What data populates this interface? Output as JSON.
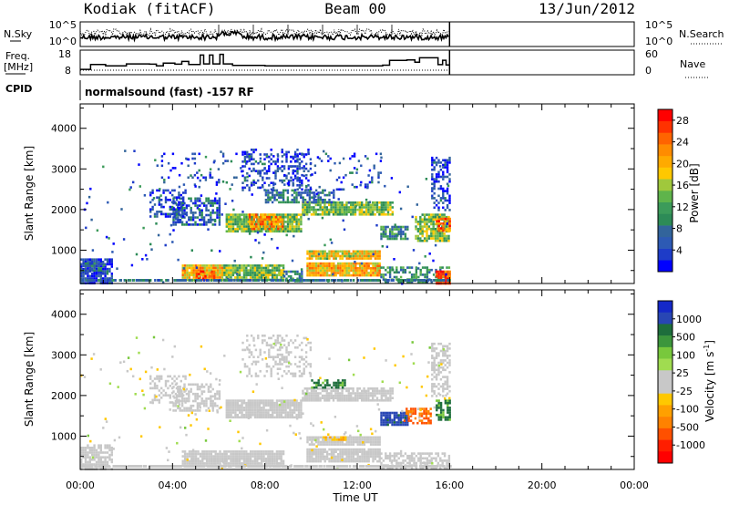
{
  "header": {
    "station": "Kodiak (fitACF)",
    "beam": "Beam 00",
    "date": "13/Jun/2012"
  },
  "chart_data": [
    {
      "type": "line",
      "name": "noise-panel",
      "left_label": "N.Sky",
      "right_label": "N.Search",
      "left_ticks": [
        "10^5",
        "10^0"
      ],
      "right_ticks": [
        "10^5",
        "10^0"
      ]
    },
    {
      "type": "line",
      "name": "frequency-panel",
      "left_label_1": "Freq.",
      "left_label_2": "[MHz]",
      "right_label": "Nave",
      "left_ticks": [
        18,
        8
      ],
      "right_ticks": [
        60,
        0
      ],
      "ylim_left": [
        8,
        18
      ],
      "ylim_right": [
        0,
        60
      ],
      "freq_steps_hours": [
        [
          0.0,
          10.2
        ],
        [
          0.45,
          12.2
        ],
        [
          1.1,
          11.6
        ],
        [
          2.0,
          12.4
        ],
        [
          3.0,
          12.3
        ],
        [
          3.3,
          11.6
        ],
        [
          3.6,
          12.7
        ],
        [
          4.1,
          12.3
        ],
        [
          4.4,
          13.4
        ],
        [
          4.7,
          12.2
        ],
        [
          5.2,
          16.0
        ],
        [
          5.35,
          12.4
        ],
        [
          5.6,
          16.0
        ],
        [
          5.75,
          12.4
        ],
        [
          6.05,
          16.3
        ],
        [
          6.2,
          12.4
        ],
        [
          6.6,
          11.8
        ],
        [
          8.0,
          11.6
        ],
        [
          9.0,
          11.6
        ],
        [
          11.5,
          11.6
        ],
        [
          12.5,
          11.6
        ],
        [
          13.1,
          11.9
        ],
        [
          13.4,
          13.8
        ],
        [
          14.15,
          14.0
        ],
        [
          14.5,
          13.1
        ],
        [
          14.7,
          14.9
        ],
        [
          15.5,
          12.1
        ],
        [
          15.7,
          13.9
        ],
        [
          15.85,
          12.0
        ],
        [
          16.0,
          12.0
        ]
      ]
    },
    {
      "type": "text",
      "name": "cpid-row",
      "label": "CPID",
      "text": "normalsound (fast) -157 RF"
    },
    {
      "type": "heatmap",
      "name": "power-panel",
      "ylabel": "Slant Range [km]",
      "xlabel": "",
      "xlim_hours": [
        0,
        24
      ],
      "ylim_km": [
        180,
        4600
      ],
      "yticks": [
        1000,
        2000,
        3000,
        4000
      ],
      "colorbar_label": "Power [dB]",
      "colorbar_ticks": [
        4,
        8,
        12,
        16,
        20,
        24,
        28
      ],
      "colorbar_range": [
        0,
        30
      ],
      "colors": [
        "#0000ff",
        "#1e3cc8",
        "#2d5ab4",
        "#32649b",
        "#2d8b57",
        "#3c9b5a",
        "#5fb44b",
        "#a0c83c",
        "#ffc800",
        "#ffaa00",
        "#ff8c00",
        "#ff6400",
        "#ff3200",
        "#ff0000"
      ],
      "echo_regions": [
        {
          "t0": 0.0,
          "t1": 1.4,
          "r0": 200,
          "r1": 800,
          "p": 4,
          "d": 0.85
        },
        {
          "t0": 0.1,
          "t1": 0.9,
          "r0": 500,
          "r1": 700,
          "p": 8,
          "d": 0.7
        },
        {
          "t0": 4.4,
          "t1": 6.2,
          "r0": 250,
          "r1": 650,
          "p": 20,
          "d": 0.95
        },
        {
          "t0": 5.0,
          "t1": 5.8,
          "r0": 300,
          "r1": 500,
          "p": 26,
          "d": 0.7
        },
        {
          "t0": 6.2,
          "t1": 8.8,
          "r0": 250,
          "r1": 650,
          "p": 14,
          "d": 0.9
        },
        {
          "t0": 8.8,
          "t1": 9.6,
          "r0": 250,
          "r1": 500,
          "p": 10,
          "d": 0.6
        },
        {
          "t0": 9.8,
          "t1": 13.0,
          "r0": 350,
          "r1": 700,
          "p": 20,
          "d": 0.95
        },
        {
          "t0": 9.8,
          "t1": 13.0,
          "r0": 800,
          "r1": 1000,
          "p": 18,
          "d": 0.95
        },
        {
          "t0": 13.0,
          "t1": 16.0,
          "r0": 200,
          "r1": 600,
          "p": 10,
          "d": 0.55
        },
        {
          "t0": 15.4,
          "t1": 16.0,
          "r0": 200,
          "r1": 500,
          "p": 26,
          "d": 0.8
        },
        {
          "t0": 6.3,
          "t1": 9.6,
          "r0": 1450,
          "r1": 1900,
          "p": 14,
          "d": 0.95
        },
        {
          "t0": 7.3,
          "t1": 8.8,
          "r0": 1500,
          "r1": 1900,
          "p": 22,
          "d": 0.7
        },
        {
          "t0": 9.6,
          "t1": 13.5,
          "r0": 1900,
          "r1": 2200,
          "p": 14,
          "d": 0.9
        },
        {
          "t0": 8.0,
          "t1": 11.0,
          "r0": 2200,
          "r1": 2500,
          "p": 8,
          "d": 0.6
        },
        {
          "t0": 4.0,
          "t1": 6.0,
          "r0": 1600,
          "r1": 2300,
          "p": 6,
          "d": 0.6
        },
        {
          "t0": 3.0,
          "t1": 4.6,
          "r0": 1800,
          "r1": 2500,
          "p": 4,
          "d": 0.45
        },
        {
          "t0": 13.0,
          "t1": 14.2,
          "r0": 1300,
          "r1": 1600,
          "p": 10,
          "d": 0.8
        },
        {
          "t0": 14.5,
          "t1": 16.0,
          "r0": 1250,
          "r1": 1900,
          "p": 14,
          "d": 0.75
        },
        {
          "t0": 15.4,
          "t1": 16.0,
          "r0": 1500,
          "r1": 1800,
          "p": 24,
          "d": 0.7
        },
        {
          "t0": 15.2,
          "t1": 16.0,
          "r0": 2000,
          "r1": 3300,
          "p": 4,
          "d": 0.5
        },
        {
          "t0": 7.0,
          "t1": 10.0,
          "r0": 2500,
          "r1": 3500,
          "p": 4,
          "d": 0.3
        },
        {
          "t0": 3.5,
          "t1": 13.0,
          "r0": 2500,
          "r1": 3400,
          "p": 4,
          "d": 0.1
        }
      ]
    },
    {
      "type": "heatmap",
      "name": "velocity-panel",
      "ylabel": "Slant Range [km]",
      "xlabel": "Time UT",
      "xlim_hours": [
        0,
        24
      ],
      "ylim_km": [
        180,
        4600
      ],
      "yticks": [
        1000,
        2000,
        3000,
        4000
      ],
      "xticks": [
        "00:00",
        "04:00",
        "08:00",
        "12:00",
        "16:00",
        "20:00",
        "00:00"
      ],
      "colorbar_label": "Velocity [m s",
      "colorbar_label_sup": "-1",
      "colorbar_label_end": "]",
      "colorbar_ticks": [
        "1000",
        "500",
        "100",
        "25",
        "-25",
        "-100",
        "-500",
        "-1000"
      ],
      "colors": [
        "#1428c8",
        "#2846b4",
        "#1e6e3c",
        "#3c963c",
        "#78c83c",
        "#a0dc50",
        "#c8c8c8",
        "#c8c8c8",
        "#ffc800",
        "#ffa000",
        "#ff8200",
        "#ff5000",
        "#ff1e00",
        "#ff0000"
      ],
      "echo_regions": [
        {
          "t0": 0.0,
          "t1": 1.4,
          "r0": 200,
          "r1": 800,
          "v": 0,
          "d": 0.8
        },
        {
          "t0": 4.4,
          "t1": 8.8,
          "r0": 250,
          "r1": 650,
          "v": 0,
          "d": 0.9
        },
        {
          "t0": 9.8,
          "t1": 13.0,
          "r0": 350,
          "r1": 700,
          "v": 0,
          "d": 0.9
        },
        {
          "t0": 9.8,
          "t1": 13.0,
          "r0": 800,
          "r1": 1000,
          "v": 0,
          "d": 0.9
        },
        {
          "t0": 10.5,
          "t1": 11.5,
          "r0": 900,
          "r1": 1000,
          "v": -60,
          "d": 0.6
        },
        {
          "t0": 6.3,
          "t1": 9.6,
          "r0": 1450,
          "r1": 1900,
          "v": 0,
          "d": 0.9
        },
        {
          "t0": 9.6,
          "t1": 13.5,
          "r0": 1900,
          "r1": 2200,
          "v": 0,
          "d": 0.85
        },
        {
          "t0": 10.0,
          "t1": 11.5,
          "r0": 2200,
          "r1": 2400,
          "v": 120,
          "d": 0.5
        },
        {
          "t0": 13.0,
          "t1": 14.2,
          "r0": 1300,
          "r1": 1600,
          "v": 300,
          "d": 0.9
        },
        {
          "t0": 14.0,
          "t1": 15.2,
          "r0": 1300,
          "r1": 1700,
          "v": -300,
          "d": 0.6
        },
        {
          "t0": 15.4,
          "t1": 16.0,
          "r0": 1400,
          "r1": 1900,
          "v": 120,
          "d": 0.7
        },
        {
          "t0": 13.0,
          "t1": 16.0,
          "r0": 200,
          "r1": 600,
          "v": 0,
          "d": 0.6
        },
        {
          "t0": 4.0,
          "t1": 6.0,
          "r0": 1600,
          "r1": 2300,
          "v": 0,
          "d": 0.55
        },
        {
          "t0": 3.0,
          "t1": 4.6,
          "r0": 1800,
          "r1": 2500,
          "v": 0,
          "d": 0.4
        },
        {
          "t0": 15.2,
          "t1": 16.0,
          "r0": 2000,
          "r1": 3300,
          "v": 0,
          "d": 0.45
        },
        {
          "t0": 7.0,
          "t1": 10.0,
          "r0": 2500,
          "r1": 3500,
          "v": 0,
          "d": 0.3
        }
      ]
    }
  ]
}
